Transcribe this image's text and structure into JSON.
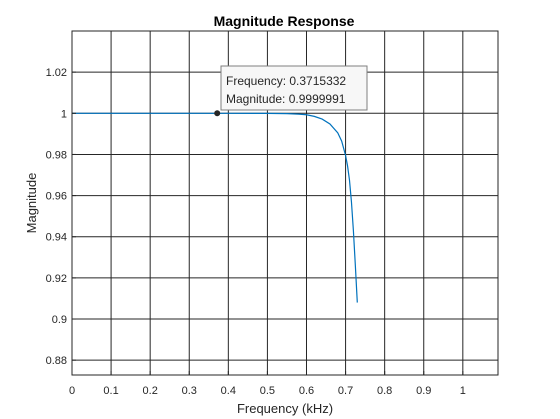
{
  "chart_data": {
    "type": "line",
    "title": "Magnitude Response",
    "xlabel": "Frequency (kHz)",
    "ylabel": "Magnitude",
    "xlim": [
      0,
      1.09
    ],
    "ylim": [
      0.8728,
      1.04
    ],
    "grid": true,
    "xticks": [
      0,
      0.1,
      0.2,
      0.3,
      0.4,
      0.5,
      0.6,
      0.7,
      0.8,
      0.9,
      1
    ],
    "xtick_labels": [
      "0",
      "0.1",
      "0.2",
      "0.3",
      "0.4",
      "0.5",
      "0.6",
      "0.7",
      "0.8",
      "0.9",
      "1"
    ],
    "yticks": [
      0.88,
      0.9,
      0.92,
      0.94,
      0.96,
      0.98,
      1,
      1.02
    ],
    "ytick_labels": [
      "0.88",
      "0.9",
      "0.92",
      "0.94",
      "0.96",
      "0.98",
      "1",
      "1.02"
    ],
    "series": [
      {
        "color": "#0072bd",
        "x": [
          0,
          0.1,
          0.2,
          0.3,
          0.4,
          0.5,
          0.55,
          0.58,
          0.6,
          0.62,
          0.64,
          0.66,
          0.68,
          0.69,
          0.7,
          0.705,
          0.71,
          0.715,
          0.72,
          0.725,
          0.73
        ],
        "y": [
          1,
          1,
          1,
          1,
          1,
          0.99995,
          0.99985,
          0.9996,
          0.9993,
          0.9985,
          0.9972,
          0.9948,
          0.9905,
          0.9865,
          0.9795,
          0.9745,
          0.9675,
          0.957,
          0.943,
          0.926,
          0.908
        ]
      }
    ],
    "datatip": {
      "x": 0.3715332,
      "y": 0.9999991,
      "line1": "Frequency: 0.3715332",
      "line2": "Magnitude: 0.9999991"
    }
  }
}
